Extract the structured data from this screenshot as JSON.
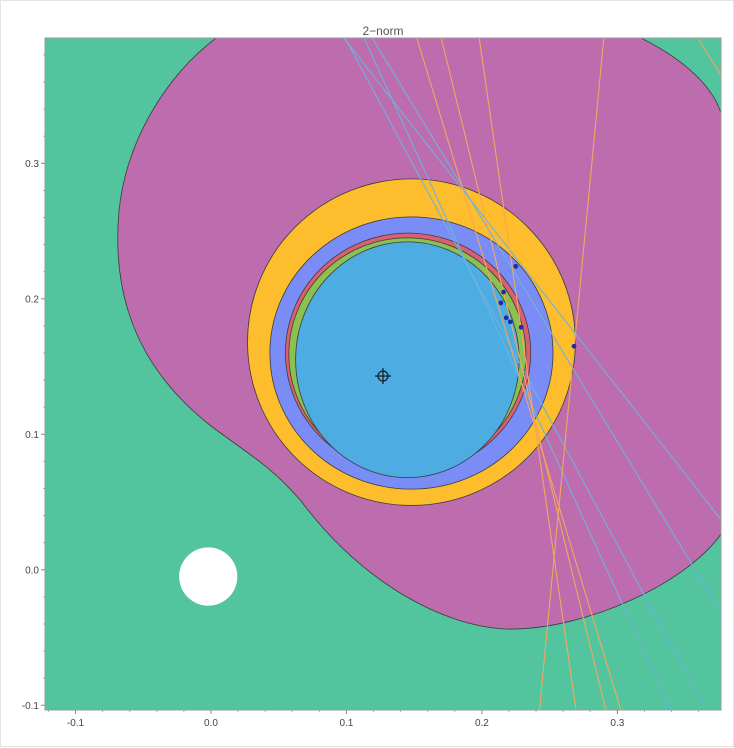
{
  "chart_data": {
    "type": "region plot",
    "title": "2−norm",
    "xlabel": "",
    "ylabel": "",
    "xlim": [
      -0.1225,
      0.3765
    ],
    "ylim": [
      -0.1035,
      0.3925
    ],
    "xticks": [
      -0.1,
      0.0,
      0.1,
      0.2,
      0.3
    ],
    "xtick_labels": [
      "-0.1",
      "0.0",
      "0.1",
      "0.2",
      "0.3"
    ],
    "yticks": [
      -0.1,
      0.0,
      0.1,
      0.2,
      0.3
    ],
    "ytick_labels": [
      "-0.1",
      "0.0",
      "0.1",
      "0.2",
      "0.3"
    ],
    "grid": false,
    "colors": {
      "background": "#52c49e",
      "outer_region": "#bd6cae",
      "yellow_ring": "#fdbd2c",
      "blue_ring": "#7a8cf6",
      "red_ring": "#d86070",
      "green_ring": "#8cc050",
      "inner_region": "#4dace2",
      "hole": "#ffffff",
      "blue_lines": "#6fb2dc",
      "orange_lines": "#f5a65c",
      "points": "#1c2ea6"
    },
    "center_marker": [
      0.127,
      0.143
    ],
    "hole": {
      "center": [
        -0.002,
        -0.005
      ],
      "radius": 0.0215
    },
    "circles": [
      {
        "name": "yellow_ring",
        "center": [
          0.148,
          0.168
        ],
        "rx": 0.121,
        "ry": 0.1205
      },
      {
        "name": "blue_ring",
        "center": [
          0.148,
          0.16
        ],
        "rx": 0.1045,
        "ry": 0.1005
      },
      {
        "name": "red_ring",
        "center": [
          0.1455,
          0.16
        ],
        "rx": 0.0905,
        "ry": 0.0885
      },
      {
        "name": "green_ring",
        "center": [
          0.145,
          0.159
        ],
        "rx": 0.0875,
        "ry": 0.086
      },
      {
        "name": "inner_region",
        "center": [
          0.145,
          0.155
        ],
        "rx": 0.0825,
        "ry": 0.087
      }
    ],
    "points": [
      [
        0.225,
        0.224
      ],
      [
        0.216,
        0.205
      ],
      [
        0.214,
        0.197
      ],
      [
        0.218,
        0.186
      ],
      [
        0.221,
        0.183
      ],
      [
        0.229,
        0.179
      ],
      [
        0.268,
        0.165
      ]
    ],
    "blue_lines": [
      {
        "from": [
          0.099,
          0.3925
        ],
        "to": [
          0.3655,
          -0.1035
        ]
      },
      {
        "from": [
          0.113,
          0.3925
        ],
        "to": [
          0.3395,
          -0.1035
        ]
      },
      {
        "from": [
          0.119,
          0.3925
        ],
        "to": [
          0.3765,
          -0.0315
        ]
      },
      {
        "from": [
          0.098,
          0.3925
        ],
        "to": [
          0.3765,
          0.037
        ]
      }
    ],
    "orange_lines": [
      {
        "from": [
          0.152,
          0.3925
        ],
        "to": [
          0.3025,
          -0.1035
        ]
      },
      {
        "from": [
          0.17,
          0.3925
        ],
        "to": [
          0.2915,
          -0.1035
        ]
      },
      {
        "from": [
          0.198,
          0.3925
        ],
        "to": [
          0.2695,
          -0.1035
        ]
      },
      {
        "from": [
          0.29,
          0.3925
        ],
        "to": [
          0.2425,
          -0.1035
        ]
      },
      {
        "from": [
          0.3595,
          0.3925
        ],
        "to": [
          0.3765,
          0.365
        ]
      }
    ]
  }
}
